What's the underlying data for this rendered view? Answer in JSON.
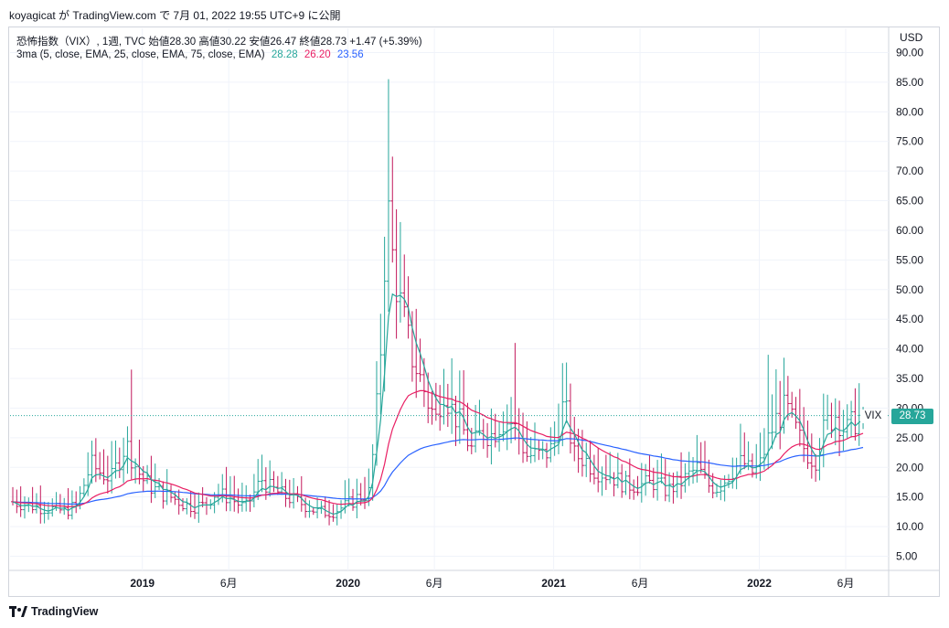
{
  "header": {
    "publish_line": "koyagicat が TradingView.com で 7月 01, 2022 19:55 UTC+9 に公開"
  },
  "legend": {
    "symbol_line": "恐怖指数（VIX）, 1週, TVC  始値28.30  高値30.22  安値26.47  終値28.73  +1.47 (+5.39%)",
    "ma_label": "3ma (5, close, EMA, 25, close, EMA, 75, close, EMA)",
    "ma_values": [
      "28.28",
      "26.20",
      "23.56"
    ]
  },
  "price_axis": {
    "currency": "USD",
    "ticks": [
      "90.00",
      "85.00",
      "80.00",
      "75.00",
      "70.00",
      "65.00",
      "60.00",
      "55.00",
      "50.00",
      "45.00",
      "40.00",
      "35.00",
      "30.00",
      "25.00",
      "20.00",
      "15.00",
      "10.00",
      "5.00"
    ],
    "last_symbol": "VIX",
    "last_price": "28.73"
  },
  "time_axis": {
    "labels": [
      {
        "text": "2019",
        "t": 2019.0,
        "bold": true
      },
      {
        "text": "6月",
        "t": 2019.42,
        "bold": false
      },
      {
        "text": "2020",
        "t": 2020.0,
        "bold": true
      },
      {
        "text": "6月",
        "t": 2020.42,
        "bold": false
      },
      {
        "text": "2021",
        "t": 2021.0,
        "bold": true
      },
      {
        "text": "6月",
        "t": 2021.42,
        "bold": false
      },
      {
        "text": "2022",
        "t": 2022.0,
        "bold": true
      },
      {
        "text": "6月",
        "t": 2022.42,
        "bold": false
      }
    ]
  },
  "brand": {
    "name": "TradingView"
  },
  "colors": {
    "up": "#26a69a",
    "down": "#c2185b",
    "ema_fast": "#26a69a",
    "ema_mid": "#e91e63",
    "ema_slow": "#2962ff",
    "grid": "#f0f3fa",
    "last_line": "#26a69a"
  },
  "chart_data": {
    "type": "line",
    "title": "恐怖指数（VIX）, 1週, TVC",
    "ylim": [
      0,
      94
    ],
    "xlim": [
      2018.37,
      2022.62
    ],
    "last": {
      "value": 28.73
    },
    "close_anchors": [
      [
        2018.37,
        14.2
      ],
      [
        2018.45,
        13.6
      ],
      [
        2018.55,
        13.0
      ],
      [
        2018.62,
        12.6
      ],
      [
        2018.68,
        13.5
      ],
      [
        2018.75,
        20.5
      ],
      [
        2018.8,
        19.0
      ],
      [
        2018.85,
        18.2
      ],
      [
        2018.92,
        24.0
      ],
      [
        2018.97,
        20.0
      ],
      [
        2019.0,
        18.0
      ],
      [
        2019.05,
        16.5
      ],
      [
        2019.1,
        15.5
      ],
      [
        2019.15,
        14.8
      ],
      [
        2019.22,
        13.5
      ],
      [
        2019.3,
        13.5
      ],
      [
        2019.35,
        15.5
      ],
      [
        2019.42,
        15.0
      ],
      [
        2019.5,
        13.0
      ],
      [
        2019.58,
        18.0
      ],
      [
        2019.62,
        16.5
      ],
      [
        2019.7,
        15.0
      ],
      [
        2019.77,
        14.0
      ],
      [
        2019.85,
        12.5
      ],
      [
        2019.92,
        12.5
      ],
      [
        2019.99,
        13.5
      ],
      [
        2020.05,
        15.0
      ],
      [
        2020.1,
        15.5
      ],
      [
        2020.13,
        25.0
      ],
      [
        2020.16,
        41.0
      ],
      [
        2020.19,
        65.0
      ],
      [
        2020.21,
        57.0
      ],
      [
        2020.25,
        48.0
      ],
      [
        2020.3,
        40.0
      ],
      [
        2020.35,
        35.0
      ],
      [
        2020.4,
        30.0
      ],
      [
        2020.43,
        28.0
      ],
      [
        2020.46,
        34.0
      ],
      [
        2020.5,
        30.0
      ],
      [
        2020.55,
        27.0
      ],
      [
        2020.6,
        23.0
      ],
      [
        2020.65,
        26.0
      ],
      [
        2020.7,
        25.5
      ],
      [
        2020.75,
        28.0
      ],
      [
        2020.8,
        27.5
      ],
      [
        2020.87,
        22.0
      ],
      [
        2020.95,
        22.0
      ],
      [
        2021.0,
        23.5
      ],
      [
        2021.05,
        31.0
      ],
      [
        2021.1,
        22.0
      ],
      [
        2021.15,
        21.5
      ],
      [
        2021.2,
        19.5
      ],
      [
        2021.28,
        18.5
      ],
      [
        2021.35,
        17.0
      ],
      [
        2021.42,
        17.0
      ],
      [
        2021.5,
        17.5
      ],
      [
        2021.55,
        16.0
      ],
      [
        2021.62,
        17.5
      ],
      [
        2021.7,
        20.0
      ],
      [
        2021.75,
        17.0
      ],
      [
        2021.8,
        16.5
      ],
      [
        2021.88,
        20.0
      ],
      [
        2021.92,
        21.0
      ],
      [
        2021.96,
        19.0
      ],
      [
        2022.0,
        20.0
      ],
      [
        2022.03,
        23.5
      ],
      [
        2022.08,
        28.0
      ],
      [
        2022.13,
        30.0
      ],
      [
        2022.18,
        26.0
      ],
      [
        2022.22,
        23.0
      ],
      [
        2022.27,
        21.0
      ],
      [
        2022.32,
        27.0
      ],
      [
        2022.37,
        29.0
      ],
      [
        2022.42,
        26.0
      ],
      [
        2022.47,
        28.0
      ],
      [
        2022.5,
        28.73
      ]
    ],
    "spikes": [
      [
        2020.19,
        85.5
      ],
      [
        2020.2,
        77.0
      ],
      [
        2020.22,
        68.0
      ],
      [
        2018.95,
        36.5
      ],
      [
        2020.82,
        41.0
      ],
      [
        2021.06,
        37.5
      ],
      [
        2022.05,
        39.0
      ],
      [
        2022.12,
        38.5
      ]
    ]
  }
}
